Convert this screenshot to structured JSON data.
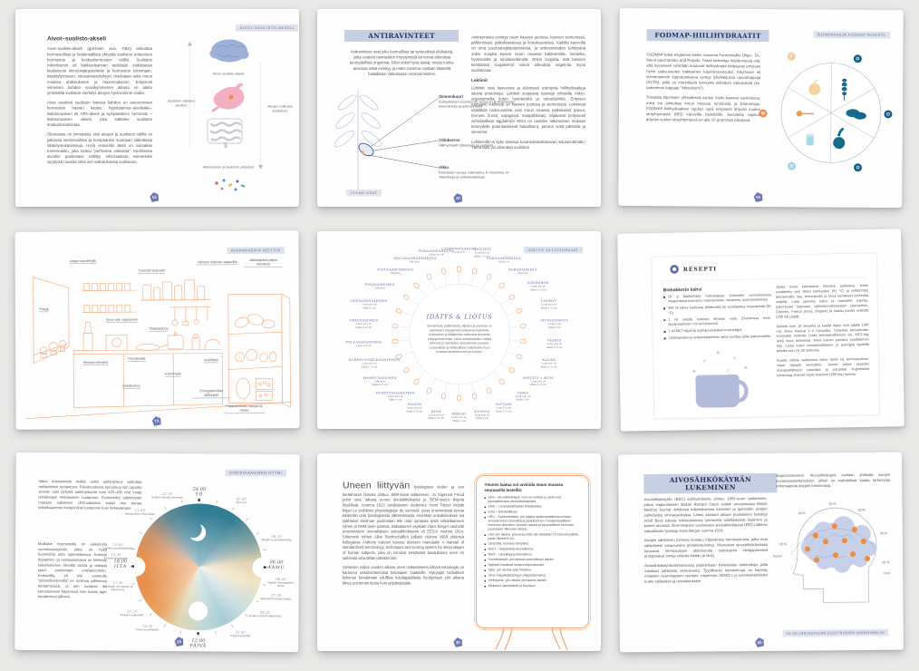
{
  "p1": {
    "tag": "AIVOT-SUOLISTO-AKSELI",
    "heading": "Aivot–suolisto-akseli",
    "para1": "Aivot–suolisto-akseli (gut-brain axis, GBA) tarkoittaa hermostollista ja biokemiallista yhteyttä suoliston enteerisen hermoston ja keskushermoston välillä. Suoliston mikrobiomin eli bakteerikannan tiedetään vaikuttavan keskeisesti immuunijärjestelmän ja hermoston toimintaan, käyttäytymiseen, stressinsietokykyyn, mielialaan sekä muun muassa ahdistukseen ja masennukseen. Erityisesti viimeisen kahden vuosikymmenen aikana on alettu ymmärtää suoliston merkitys aivojen hyvinvoinnin osalta.",
    "para2": "Aivot viestivät suoliston kanssa kahden eri autonomisen hermoston haaran kautta: hypotalamus–aivolisäke–lisämunuainen eli HPA-akseli ja sympaattinen hermosto – lisämunuainen -akseli, joka säätelee suoliston imukudostoimintaa.",
    "para3": "Olennaista on ymmärtää, että aivojen ja suoliston välillä on jatkuvaa viestinvaihtoa ja kumpaankin suuntaan vaikuttavia säätelymekanismeja. Hyvä esimerkki tästä on voimakas tunnereaktio, joka tuntuu ”perhosina vatsassa”. Suolistosta aivoihin puolestaan välittyy informaatiota esimerkiksi syödystä ruuasta sekä sen vaikutuksesta suolistoon.",
    "axis_label": "Aivot–suolisto-akseli",
    "left_label": "Suoliston vaikutus aivoihin",
    "right_label": "Aivojen vaikutus suolistoon",
    "bottom_label": "Mikrobiomin ja suoliston yhteistyö",
    "page_no": "53"
  },
  "p2": {
    "heading": "ANTIRAVINTEET",
    "intro": "Antiravinteet ovat joko luonnollisia tai synteettisiä yhdisteitä, jotka estävät ravinteiden imeytymistä tai voivat aiheuttaa terveydellisiä ongelmia. Siksi onkin hyvä tietää, missä ruoka-aineissa näitä esiintyy ja miten ravintoa voidaan käsitellä haitallisten vaikutusten minimoimiseksi.",
    "parts": [
      {
        "name": "Siemenkuori",
        "desc": "Kuitupitoinen kuorikerros, jossa on B-vitamiineja, hivenaineita ja antiravinteita."
      },
      {
        "name": "Ydinkerros",
        "desc": "Hiilihydraatit (tärkkelys) ja proteiinit."
      },
      {
        "name": "Alkio",
        "desc": "Runsaasti rasvaa, valkuaista, E-vitamiinia, B-vitamiineja ja antioksidantteja."
      }
    ],
    "tag": "JYVÄN OSAT",
    "col2_p1": "Antiravinteita esiintyy usein kasvien juurissa, kasvien siemenissä, pähkinöissä, palkokasveissa ja koisokasveissa. Kaikilla kasveilla on oma puolustusjärjestelmänsä, ja antiravinteiden tehtävänä onkin suojata kasvia muun muassa bakteereilta, homeilta, hyönteisiltä ja tuholaiseläimiltä. Onkin loogista, että kasvien kehittämät suojakeinot voivat aiheuttaa ongelmia myös suolistossa.",
    "subhead": "Lektiinit",
    "col2_p2": "Lektiinit ovat kasveissa ja eläimissä esiintyviä hiilihydraatteja sitovia proteiineja. Lektiinit suojaavat kasveja erilaisilta mikro-organismeilta kuten hyönteisiltä ja tuhoeläimiltä. Erityisen runsaasti lektiinejä on kasvien juurissa ja siemenissä. Lektiinejä sisältäviä ruoka-aineita ovat muun muassa palkokasvit (pavut, herneet, linssit, soijapavut, maapähkinät), viljakasvit (erityisesti vehnänalkion agglutiniini WGA on useiden tutkimusten mukaan terveydelle potentiaalisesti haitallinen), peruna sekä pähkinät ja siemenet.",
    "col2_p3": "Lektiineillä on kyky sitoutua ruuansulatuskanavan soluseinämään. Tämä taas voi aiheuttaa suoliston",
    "page_no": "44"
  },
  "p3": {
    "heading": "FODMAP-HIILIHYDRAATIT",
    "tag": "ESIMERKKEJÄ FODMAP-RUOISTA",
    "para1": "FODMAP tulee englannin kielen sanoista Fermentable Oligo-, Di-, Mono-saccharides and Polyols. Tämä tarkoittaa käytännössä sitä, että kyseiseen ryhmään kuuluvat hiilihydraatit kelpaavat erityisen hyvin paksusuolen bakteerien käymisravinnoksi. Käymisen eli fermentoinnin lopputuotteena syntyy lyhytketjuisia rasvahappoja (SCFA), joilla on merkittäviä terveyttä edistäviä vaikutuksia (ks. tarkemmin kappale ”Mikrobiomi”).",
    "para2": "Toisaalta käymisen yhteydessä syntyy myös kaasua suolistossa, mikä voi aiheuttaa muun muassa turvotusta ja ilmavaivoja. FODMAP-hiilihydraattien rajoitus sopii erityisesti ärtyvän suolen oireyhtymästä (IBS) kärsiville henkilöille. Suositeltu rajoitus ärtyvän suolen oireyhtymässä on alle 10 grammaa päivässä.",
    "letters": [
      {
        "ch": "F"
      },
      {
        "ch": "O"
      },
      {
        "ch": "O"
      },
      {
        "ch": "O"
      },
      {
        "ch": "D"
      },
      {
        "ch": "M"
      }
    ],
    "page_no": "50"
  },
  "p4": {
    "tag": "BIOHAKKERIN KEITTIÖ",
    "labels": [
      "Laaja maustehylly",
      "Tummat lasipurkit",
      "Välineet helposti saatavilla",
      "Jääkaapissa paljon kasviksia",
      "Yrttejä",
      "Sous vide -kypsennin",
      "Titaanipannu",
      "Tehokas blenderi",
      "Höyrykattila",
      "Kahvimylly",
      "Vesifiltteri",
      "Induktioliesi",
      "Energiatehokas jääkaappi",
      "Pakastimessa marjoja ja riistaa"
    ],
    "page_no": "73"
  },
  "p5": {
    "tag": "IDÄTYS JA LIOTUSAJAT",
    "center_title": "IDÄTYS & LIOTUS",
    "center_text": "Siemenissä, pähkinöissä, viljoissa ja pavuissa on ravinteiden imeytymistä estäviä antiravinteita. Liottaminen ja idättäminen aktivoivat siemenen entsyymitoiminnan, jolloin antiravinteiden määrä vähenee ja ravinteiden imeytyminen paranee. Liotusaikaan ja idätysaikaan vaikuttavat muun muassa siementen koko ja tuoreus.",
    "items": [
      {
        "name": "CASHEWPÄHKINÄ",
        "note1": "Liota 2 h",
        "note2": ""
      },
      {
        "name": "MANTELI",
        "note1": "Liota yön yli",
        "note2": "Idätä 1–2 vrk"
      },
      {
        "name": "SAKSANPÄHKINÄ",
        "note1": "Liota 4 h",
        "note2": ""
      },
      {
        "name": "PARAPÄHKINÄ",
        "note1": "Älä liota",
        "note2": ""
      },
      {
        "name": "KIKHERNE",
        "note1": "Liota yön yli",
        "note2": "Idätä 2–3 vrk"
      },
      {
        "name": "LINSSIT",
        "note1": "Liota yön yli",
        "note2": "Idätä 2–3 vrk"
      },
      {
        "name": "MUNGOPAVUT",
        "note1": "Liota 1 vrk",
        "note2": "Idätä 2 vrk"
      },
      {
        "name": "VEHNÄ",
        "note1": "Liota yön yli",
        "note2": "Idätä 1–2 vrk"
      },
      {
        "name": "KAURA",
        "note1": "Liota yön yli",
        "note2": "Idätä 1–2 vrk"
      },
      {
        "name": "SPELTTI + RUIS",
        "note1": "Liota yön yli",
        "note2": "Idätä 2–3 vrk"
      },
      {
        "name": "OHRA",
        "note1": "Liota yön yli",
        "note2": "Idätä 2 vrk"
      },
      {
        "name": "TATTARI",
        "note1": "Liota 15 min",
        "note2": "Idätä 1–2 vrk"
      },
      {
        "name": "KVINOA",
        "note1": "Liota yön yli",
        "note2": "Idätä 1 vrk"
      },
      {
        "name": "HIRSSI",
        "note1": "Liota yön yli",
        "note2": "Idätä 1 vrk"
      },
      {
        "name": "RIISI",
        "note1": "Liota yön yli",
        "note2": "Idätä 3–5 vrk"
      },
      {
        "name": "MAISSI",
        "note1": "Liota yön yli",
        "note2": "Idätä 2–3 vrk"
      },
      {
        "name": "KURPITSANSIEMEN",
        "note1": "Liota yön yli",
        "note2": "Idätä 1 vrk"
      },
      {
        "name": "HAMPUNSIEMEN",
        "note1": "Älä liota",
        "note2": "Idätä 2–3 vrk"
      },
      {
        "name": "AURINGONKUKANSIEMEN",
        "note1": "Liota yön yli",
        "note2": "Idätä 1–2 vrk"
      },
      {
        "name": "PELLAVANSIEMEN",
        "note1": "Liota yön yli",
        "note2": ""
      },
      {
        "name": "CHIANSIEMEN",
        "note1": "Liota yön yli",
        "note2": "Idätä 4–6 vrk"
      },
      {
        "name": "SEESAMINSIEMEN",
        "note1": "Liota yön yli",
        "note2": "Idätä 1 vrk"
      },
      {
        "name": "PINJANSIEMEN",
        "note1": "Älä liota",
        "note2": ""
      },
      {
        "name": "PISTAASIPÄHKINÄ",
        "note1": "Älä liota",
        "note2": ""
      },
      {
        "name": "MACADAMIAPÄHKINÄ",
        "note1": "Älä liota",
        "note2": ""
      },
      {
        "name": "PEKAANIPÄHKINÄ",
        "note1": "Liota yön yli",
        "note2": ""
      }
    ]
  },
  "p6": {
    "header": "RESEPTI",
    "title": "Biohakkerin kahvi",
    "bullets": [
      "16 g laadukkaita kahvipapuja (korkealla vuoristoisessa maaperässä kasvanut, käsinpoimittu, vesipesty, luomutuotantoa)",
      "250 ml lähes kiehuvaa lähdevettä tai suodatettua kraanavettä (91 °C)",
      "1 rkl niityllä ruokitun lehmän voita (Suomessa esim. biodynaaminen voi tai luomuvoi)",
      "1 rkl MCT-öljyä tai kylmäpuristettua kookosöljyä",
      "Lisämausteena veitsenkärjellinen aitoa vaniljaa ja/tai pakuriuutetta"
    ],
    "steps": [
      "Jauha ensin kahvipavut hienoksi jauheeksi. Keitä suodatettu vesi lähes kiehuvaksi (91 °C) ja esilämmitä tehosekoitin, lasi, termospullo ja muut tarvikkeet kuumalla vedellä. Laita jauhettu kahvi ja mausteet (vanilja, pakuriuute) sopivaan valmistusvälineeseen (Aeropress, Chemex, French press, dripperi) ja kaada puolet vedestä (100 ml) päälle.",
      "Sekoita noin 10 sekuntia ja kaada loppu vesi päälle (100 ml). Anna hautua 1–4 minuuttia. Tyhjennä tehosekoitin kuumasta vedestä. Lisää tehosekoittimeen voi, MCT-öljy sekä muut ainesosat. Anna kahvin puristua suodattimen läpi. Lisää kahvi tehosekoittimeen ja pyöräytä täydellä teholla noin 15–20 sekuntia.",
      "Kaada valmis vaahtoava kahvi lasiin tai termospulloon. Nauti hitaasti siemaillen. Juoma antaa tasaisen energianlähteen rasvoista ja parantaa kognitiivisia toimintoja. Kokeile myös teaniinin (200 mg) kanssa."
    ]
  },
  "p7": {
    "tag": "SIRKADIAANINEN RYTMI",
    "para1": "Valon intensiteetin lisäksi valon aallonpituus vaikuttaa melatoniinin tuotantoon. Päivänvalossa korostuva niin sanottu sininen valo (lyhyttä aallonpituutta noin 420–485 nm) estää tehokkaasti melatoniinin tuotannon. Esimerkiksi tutkimusten mukaan valkoinen LED-valaistus estää viisi kertaa tehokkaammin melatoniinin tuotannon kuin hehkulamput.",
    "para2": "Muillakin hormoneilla on vaikutusta vuorokausirytmiin, jotka on hyvä huomioida unta optimoitaessa. Korkeat dopamiini- ja serotoniinitasot on linkitetty kokemukseen hereillä olosta ja matalat tasot puolestaan uneliaisuuteen. Kortisolilla eli niin sanotulla ”stressihormonilla” on roolinsa yöllisessä heräämisissä, ja sen tuotanto on korostuneesti käynnissä noin tunnin ajan heräämisen jälkeen.",
    "majors": [
      {
        "t": "24.00",
        "d": "YÖ"
      },
      {
        "t": "06.00",
        "d": "AAMU"
      },
      {
        "t": "12.00",
        "d": "PÄIVÄ"
      },
      {
        "t": "18.00",
        "d": "ILTA"
      }
    ],
    "clock": [
      {
        "t": "02.00",
        "d": "Syvin uni"
      },
      {
        "t": "04.30",
        "d": "Matalin ruumiinlämpötila"
      },
      {
        "t": "06.45",
        "d": "Nopein verenpaineen nousu"
      },
      {
        "t": "07.30",
        "d": "Melatoniinin eritys loppuu"
      },
      {
        "t": "08.30",
        "d": "Suolen toiminta käynnistyy"
      },
      {
        "t": "10.00",
        "d": "Korkea vireystila"
      },
      {
        "t": "14.30",
        "d": "Paras koordinaatio"
      },
      {
        "t": "15.30",
        "d": "Nopein reaktioaika"
      },
      {
        "t": "17.00",
        "d": "Tehokkain verenkierto ja lihasvoima"
      },
      {
        "t": "18.30",
        "d": "Korkein verenpaine"
      },
      {
        "t": "19.00",
        "d": "Korkein ruumiinlämpötila"
      },
      {
        "t": "21.00",
        "d": "Melatoniinin eritys alkaa"
      },
      {
        "t": "22.30",
        "d": "Suolen toiminta vaimenee"
      }
    ],
    "page_no": "26"
  },
  "p8": {
    "lead": "Uneen liittyvän",
    "intro_rest": " fysiologisen tiedon ja sen keräämisen historia ulottuu 1900-luvun taitteeseen. Jo Sigmund Freud pohti unia, aikana ennen aivosähkökäyriä ja REM-uneen liittyviä löydöksiä. Vuonna 1913 ranskalainen tiedemies Henri Piéron kirjoitti kirjan Le problème physiologique du sommeil, jossa ensimmäistä kertaa käsiteltiin unta fysiologisesta näkökulmasta. Amerikan unitutkimuksen isä Nathaniel Kleitman puolestaan teki uraa uurtavaa työtä sirkadiaanisen rytmin ja REM-unen parissa. Saksalainen psykiatri Hans Berger nauhoitti ensimmäisen unenaikaisen aivosähkökäyrän eli EEG:n vuonna 1924. Sittemmin tohtori Allan Rechtschaffen julkaisi vuonna 1968 yhdessä kollegansa Anthony Kalesin kanssa ikonisen manuaalin A manual of standardized terminology, techniques and scoring system for sleep stages of human subjects, joka on toiminut kestävänä kuvauksena unen eri vaiheista aina tähän päivään asti.",
    "para2": "Viimeisen viiden vuoden aikana unen mittaamiseen liittyvä teknologia on karannut unilaboratorioista kuluttajien saataville. Nykyajan biohakkeri kykenee keräämään edullisia kuluttajalaitteita hyödyntäen yön aikana lähes enemmän tietoa kuin työpäivästään.",
    "box_title": "Yöunen laatua voi arvioida muun muassa seuraavilla testeillä:",
    "box_items": [
      "EEG – Aivosähkökäyrä; unen eri vaiheet ja syklit ovat tunnistettavissa aivosähkökäyrästä.",
      "EMG – Leuanalaislihasten lihasjännitys.",
      "EOG – Silmänliikkeet.",
      "HRV – Sydänvariaatio; yön aikana sydänvariaatiosta voidaan arvioida kehon stressitila ja palautuminen. Parasympaattinen hermosto aktivoituu ortounen aikana ja sympaattinen hermosto puolestaan vilkeunen aikana.",
      "Liike yön aikana: yöunessa tulisi olla vähintään 15 minuutin pätkiä, jolloin liikettä ei ole.",
      "Lämpötila: huoneen lämpötila.",
      "MSLT – Nukahtamisviivetutkimus.",
      "MWT – Hereilläpysymistutkimus.",
      "Ruumiinlämpö: yön aikana ruumiinlämpö laskee.",
      "Syljestä mitattavat melatoniinipitoisuudet.",
      "Syke: yön aikana syke hidastuu.",
      "Veren happikyllästeisyys (happisaturaatio).",
      "Verenpaine: yön aikana verenpaine laskee.",
      "Äänitasot: taustaäänet ja kuorsaus."
    ],
    "page_no": "30"
  },
  "p9": {
    "heading": "AIVOSÄHKÖKÄYRÄN LUKEMINEN",
    "para1": "Aivosähkökäyrän (EEG) kehityshistoria ulottuu 1900-luvun taitteeseen, jolloin englantilainen lääkäri Richard Caton esitteli arvostetussa British Medical Journal -lehdessä tutkimuksensa kaniinien ja apinoiden aivojen sähköisistä ominaisuuksista. Lähes samaan aikaan puolalainen fysiologi Adolf Beck julkaisi tutkimuksensa rytmisestä oskillaatiosta kaniinien ja koirien aivoissa. Ensimmäisen varsinaisen aivosähkökäyrän (EEG) tallensi saksalainen fysiologi Hans Berger vuonna 1924.",
    "para2": "Aivojen sähköinen toiminta koostuu miljardeista hermosoluista, jotka ovat sähköisesti varautuneita (polarisoituneita). Muutokset aivosähkökäyrässä kuvaavat hermosolujen aktiivisuutta (solukalvon siirtäjäproteiinit pumppaavat ioneja soluista sisään ja ulos).",
    "para3": "Aivosähkökäyrätutkimuksessa päänahkaan kiinnitetään elektrodeja, joilla mitataan sähköistä aktiivisuutta. Tyypillisesti menetelmää on käytetty erilaisten neurologisten vaivojen, migreenin, ADHD:n ja toimintahäiriöiden kuten epilepsian ja univaikeuksien",
    "col2_p1": "diagnosoimiseen. Aivosähkökäyrä voidaan yhdistää aivojen kuvantamistutkimuksiin, jolloin on mahdollista saada tarkempaa informaatiota aivojen toiminnasta.",
    "pcts": [
      "20 %",
      "20 %",
      "20 %",
      "20 %",
      "10 %",
      "10 %"
    ],
    "nasion": "Nasion",
    "inion": "Inion",
    "caption": "10–20-JÄRJESTELMÄ ELEKTRODIEN ASEMOINNILLE",
    "page_no": "85"
  }
}
